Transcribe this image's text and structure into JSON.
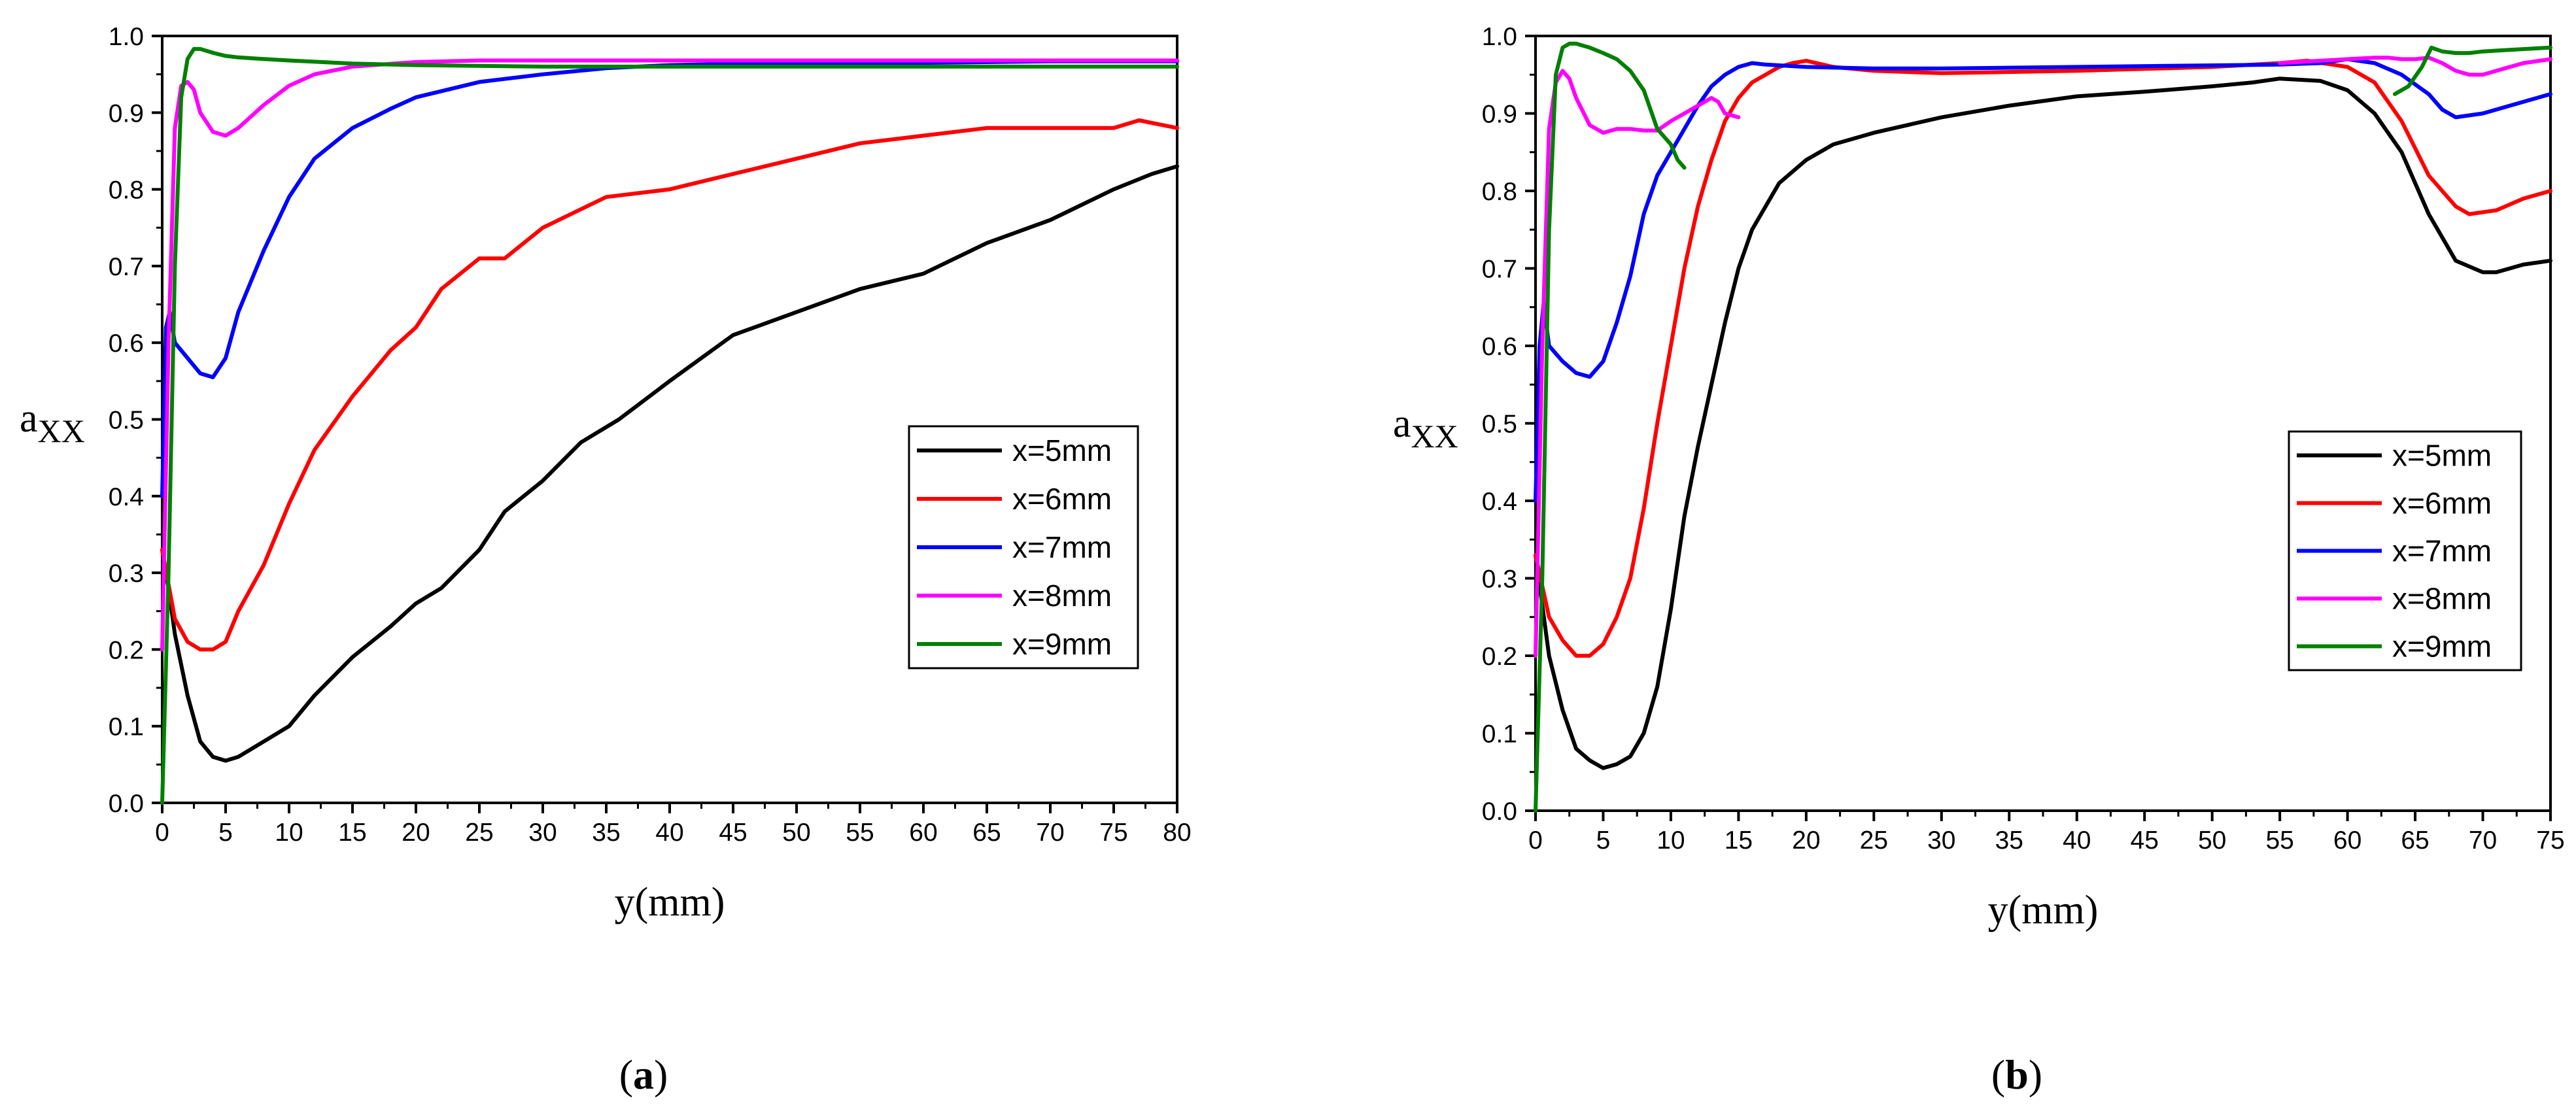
{
  "chart_data": [
    {
      "type": "line",
      "panel_label": "a",
      "xlabel": "y(mm)",
      "ylabel": {
        "base": "a",
        "sub": "XX"
      },
      "xlim": [
        0,
        80
      ],
      "ylim": [
        0,
        1.0
      ],
      "xticks": [
        0,
        5,
        10,
        15,
        20,
        25,
        30,
        35,
        40,
        45,
        50,
        55,
        60,
        65,
        70,
        75,
        80
      ],
      "yticks": [
        0.0,
        0.1,
        0.2,
        0.3,
        0.4,
        0.5,
        0.6,
        0.7,
        0.8,
        0.9,
        1.0
      ],
      "xtick_labels": [
        "0",
        "5",
        "10",
        "15",
        "20",
        "25",
        "30",
        "35",
        "40",
        "45",
        "50",
        "55",
        "60",
        "65",
        "70",
        "75",
        "80"
      ],
      "ytick_labels": [
        "0.0",
        "0.1",
        "0.2",
        "0.3",
        "0.4",
        "0.5",
        "0.6",
        "0.7",
        "0.8",
        "0.9",
        "1.0"
      ],
      "legend_position": "right-middle",
      "series": [
        {
          "name": "x=5mm",
          "color": "#000000",
          "x": [
            0,
            0.5,
            1,
            2,
            3,
            4,
            5,
            6,
            8,
            10,
            12,
            15,
            18,
            20,
            22,
            25,
            27,
            30,
            33,
            36,
            40,
            45,
            50,
            55,
            60,
            65,
            70,
            75,
            78,
            80
          ],
          "y": [
            0.33,
            0.28,
            0.22,
            0.14,
            0.08,
            0.06,
            0.055,
            0.06,
            0.08,
            0.1,
            0.14,
            0.19,
            0.23,
            0.26,
            0.28,
            0.33,
            0.38,
            0.42,
            0.47,
            0.5,
            0.55,
            0.61,
            0.64,
            0.67,
            0.69,
            0.73,
            0.76,
            0.8,
            0.82,
            0.83
          ]
        },
        {
          "name": "x=6mm",
          "color": "#ff0000",
          "x": [
            0,
            1,
            2,
            3,
            4,
            5,
            6,
            8,
            10,
            12,
            15,
            18,
            20,
            22,
            25,
            27,
            30,
            35,
            40,
            45,
            50,
            55,
            60,
            65,
            70,
            75,
            77,
            80
          ],
          "y": [
            0.33,
            0.24,
            0.21,
            0.2,
            0.2,
            0.21,
            0.25,
            0.31,
            0.39,
            0.46,
            0.53,
            0.59,
            0.62,
            0.67,
            0.71,
            0.71,
            0.75,
            0.79,
            0.8,
            0.82,
            0.84,
            0.86,
            0.87,
            0.88,
            0.88,
            0.88,
            0.89,
            0.88
          ]
        },
        {
          "name": "x=7mm",
          "color": "#0000ff",
          "x": [
            0,
            0.3,
            0.6,
            1,
            2,
            3,
            4,
            5,
            6,
            8,
            10,
            12,
            15,
            18,
            20,
            25,
            30,
            35,
            40,
            50,
            60,
            70,
            80
          ],
          "y": [
            0.4,
            0.62,
            0.64,
            0.6,
            0.58,
            0.56,
            0.555,
            0.58,
            0.64,
            0.72,
            0.79,
            0.84,
            0.88,
            0.905,
            0.92,
            0.94,
            0.95,
            0.958,
            0.962,
            0.965,
            0.965,
            0.967,
            0.967
          ]
        },
        {
          "name": "x=8mm",
          "color": "#ff00ff",
          "x": [
            0,
            0.5,
            1,
            1.5,
            2,
            2.5,
            3,
            4,
            5,
            6,
            8,
            10,
            12,
            15,
            20,
            25,
            30,
            40,
            50,
            60,
            70,
            80
          ],
          "y": [
            0.2,
            0.6,
            0.88,
            0.935,
            0.94,
            0.93,
            0.9,
            0.875,
            0.87,
            0.88,
            0.91,
            0.935,
            0.95,
            0.96,
            0.966,
            0.968,
            0.968,
            0.968,
            0.968,
            0.968,
            0.968,
            0.968
          ]
        },
        {
          "name": "x=9mm",
          "color": "#008000",
          "x": [
            0,
            0.5,
            1,
            1.5,
            2,
            2.5,
            3,
            4,
            5,
            6,
            8,
            10,
            15,
            20,
            30,
            40,
            50,
            60,
            70,
            80
          ],
          "y": [
            0.0,
            0.3,
            0.7,
            0.92,
            0.97,
            0.983,
            0.983,
            0.978,
            0.974,
            0.972,
            0.97,
            0.968,
            0.964,
            0.962,
            0.96,
            0.96,
            0.96,
            0.96,
            0.96,
            0.96
          ]
        }
      ]
    },
    {
      "type": "line",
      "panel_label": "b",
      "xlabel": "y(mm)",
      "ylabel": {
        "base": "a",
        "sub": "XX"
      },
      "xlim": [
        0,
        75
      ],
      "ylim": [
        0,
        1.0
      ],
      "xticks": [
        0,
        5,
        10,
        15,
        20,
        25,
        30,
        35,
        40,
        45,
        50,
        55,
        60,
        65,
        70,
        75
      ],
      "yticks": [
        0.0,
        0.1,
        0.2,
        0.3,
        0.4,
        0.5,
        0.6,
        0.7,
        0.8,
        0.9,
        1.0
      ],
      "xtick_labels": [
        "0",
        "5",
        "10",
        "15",
        "20",
        "25",
        "30",
        "35",
        "40",
        "45",
        "50",
        "55",
        "60",
        "65",
        "70",
        "75"
      ],
      "ytick_labels": [
        "0.0",
        "0.1",
        "0.2",
        "0.3",
        "0.4",
        "0.5",
        "0.6",
        "0.7",
        "0.8",
        "0.9",
        "1.0"
      ],
      "legend_position": "right-middle",
      "series": [
        {
          "name": "x=5mm",
          "color": "#000000",
          "x": [
            0,
            1,
            2,
            3,
            4,
            5,
            6,
            7,
            8,
            9,
            10,
            11,
            12,
            13,
            14,
            15,
            16,
            18,
            20,
            22,
            25,
            30,
            35,
            40,
            45,
            50,
            53,
            55,
            58,
            60,
            62,
            64,
            66,
            68,
            70,
            71,
            73,
            75
          ],
          "y": [
            0.33,
            0.2,
            0.13,
            0.08,
            0.065,
            0.055,
            0.06,
            0.07,
            0.1,
            0.16,
            0.26,
            0.38,
            0.47,
            0.55,
            0.63,
            0.7,
            0.75,
            0.81,
            0.84,
            0.86,
            0.875,
            0.895,
            0.91,
            0.922,
            0.928,
            0.935,
            0.94,
            0.945,
            0.942,
            0.93,
            0.9,
            0.85,
            0.77,
            0.71,
            0.695,
            0.695,
            0.705,
            0.71
          ]
        },
        {
          "name": "x=6mm",
          "color": "#ff0000",
          "x": [
            0,
            1,
            2,
            3,
            4,
            5,
            6,
            7,
            8,
            9,
            10,
            11,
            12,
            13,
            14,
            15,
            16,
            18,
            19,
            20,
            22,
            25,
            30,
            40,
            50,
            55,
            57,
            60,
            62,
            64,
            66,
            68,
            69,
            71,
            73,
            75
          ],
          "y": [
            0.33,
            0.25,
            0.22,
            0.2,
            0.2,
            0.215,
            0.25,
            0.3,
            0.39,
            0.5,
            0.6,
            0.7,
            0.78,
            0.84,
            0.89,
            0.92,
            0.94,
            0.96,
            0.965,
            0.968,
            0.96,
            0.955,
            0.952,
            0.955,
            0.96,
            0.965,
            0.968,
            0.96,
            0.94,
            0.89,
            0.82,
            0.78,
            0.77,
            0.775,
            0.79,
            0.8
          ]
        },
        {
          "name": "x=7mm",
          "color": "#0000ff",
          "x": [
            0,
            0.3,
            0.6,
            1,
            2,
            3,
            4,
            5,
            6,
            7,
            8,
            9,
            10,
            11,
            12,
            13,
            14,
            15,
            16,
            17,
            20,
            25,
            30,
            40,
            50,
            55,
            58,
            60,
            62,
            64,
            66,
            67,
            68,
            70,
            72,
            75
          ],
          "y": [
            0.4,
            0.6,
            0.655,
            0.6,
            0.58,
            0.565,
            0.56,
            0.58,
            0.63,
            0.69,
            0.77,
            0.82,
            0.85,
            0.88,
            0.91,
            0.935,
            0.95,
            0.96,
            0.965,
            0.963,
            0.96,
            0.958,
            0.958,
            0.96,
            0.962,
            0.963,
            0.965,
            0.97,
            0.965,
            0.95,
            0.925,
            0.905,
            0.895,
            0.9,
            0.91,
            0.925
          ]
        },
        {
          "name": "x=8mm",
          "color": "#ff00ff",
          "x": [
            0,
            0.5,
            1,
            1.5,
            2,
            2.5,
            3,
            4,
            5,
            6,
            7,
            8,
            9,
            10,
            11,
            12,
            13,
            13.5,
            14,
            15
          ],
          "y": [
            0.2,
            0.6,
            0.88,
            0.94,
            0.955,
            0.945,
            0.92,
            0.885,
            0.875,
            0.88,
            0.88,
            0.878,
            0.878,
            0.89,
            0.9,
            0.91,
            0.92,
            0.915,
            0.9,
            0.895
          ],
          "x2": [
            55,
            58,
            60,
            62,
            63,
            64,
            65,
            66,
            67,
            68,
            69,
            70,
            71,
            73,
            75
          ],
          "y2": [
            0.965,
            0.968,
            0.97,
            0.972,
            0.972,
            0.97,
            0.97,
            0.972,
            0.965,
            0.955,
            0.95,
            0.95,
            0.955,
            0.965,
            0.97
          ]
        },
        {
          "name": "x=9mm",
          "color": "#008000",
          "x": [
            0,
            0.5,
            1,
            1.5,
            2,
            2.5,
            3,
            4,
            5,
            6,
            7,
            8,
            9,
            10,
            10.5,
            11
          ],
          "y": [
            0.0,
            0.3,
            0.75,
            0.95,
            0.985,
            0.99,
            0.99,
            0.985,
            0.978,
            0.97,
            0.955,
            0.93,
            0.88,
            0.86,
            0.84,
            0.83
          ],
          "x2": [
            63.5,
            64.5,
            65.5,
            66.2,
            67,
            68,
            69,
            70,
            72,
            75
          ],
          "y2": [
            0.925,
            0.935,
            0.96,
            0.985,
            0.98,
            0.978,
            0.978,
            0.98,
            0.982,
            0.985
          ]
        }
      ]
    }
  ]
}
